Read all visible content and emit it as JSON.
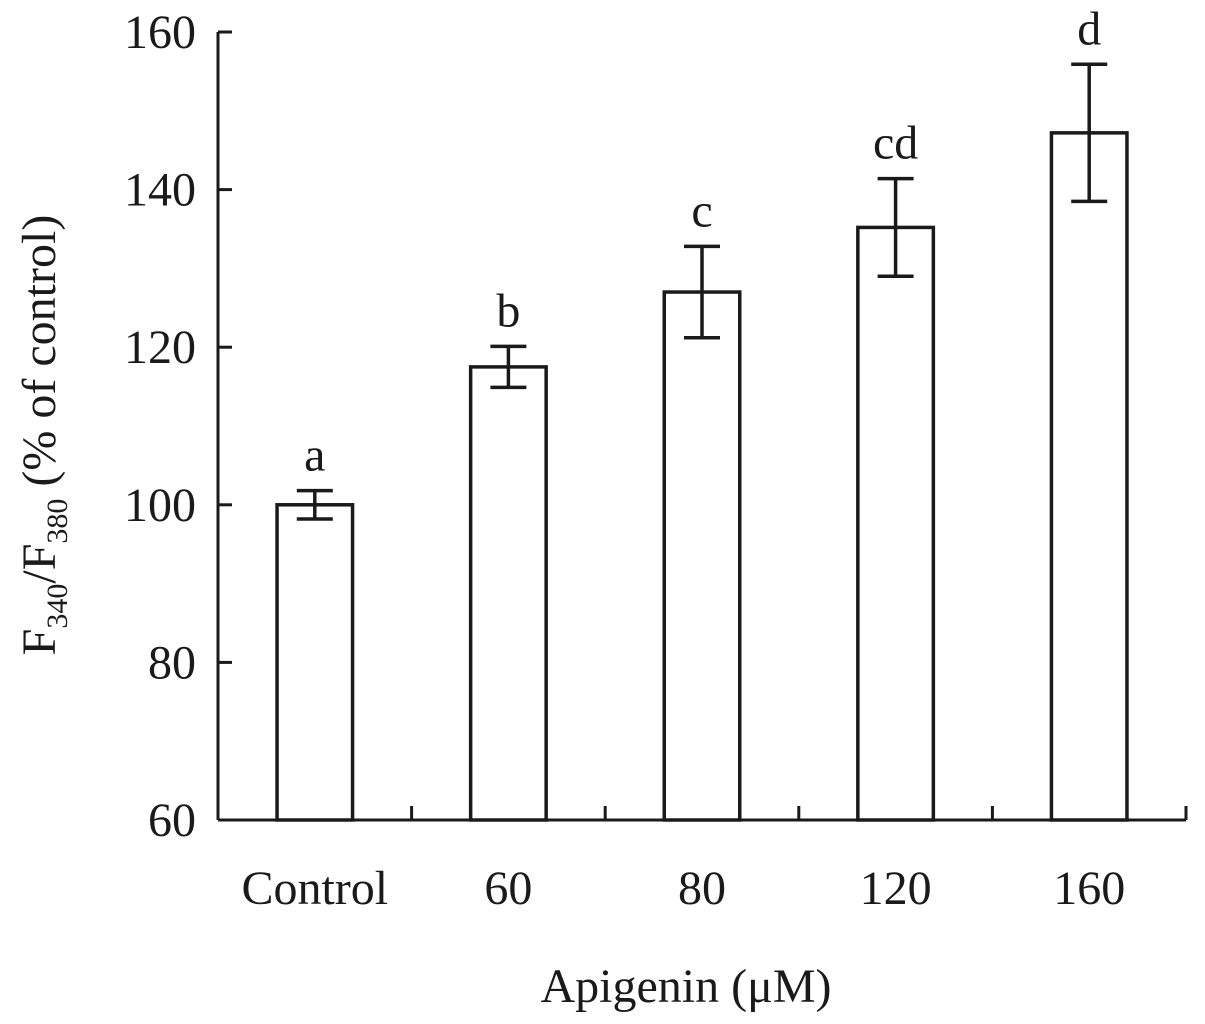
{
  "chart_data": {
    "type": "bar",
    "categories": [
      "Control",
      "60",
      "80",
      "120",
      "160"
    ],
    "values": [
      100,
      117.5,
      127,
      135.2,
      147.2
    ],
    "errors": [
      1.8,
      2.6,
      5.8,
      6.2,
      8.7
    ],
    "significance_labels": [
      "a",
      "b",
      "c",
      "cd",
      "d"
    ],
    "xlabel": "Apigenin (μM)",
    "ylabel": {
      "p1": "F",
      "s1": "340",
      "p2": "/F",
      "s2": "380",
      "p3": " (% of control)"
    },
    "ylim": [
      60,
      160
    ],
    "yticks": [
      "60",
      "80",
      "100",
      "120",
      "140",
      "160"
    ],
    "grid": false,
    "legend": "none"
  }
}
